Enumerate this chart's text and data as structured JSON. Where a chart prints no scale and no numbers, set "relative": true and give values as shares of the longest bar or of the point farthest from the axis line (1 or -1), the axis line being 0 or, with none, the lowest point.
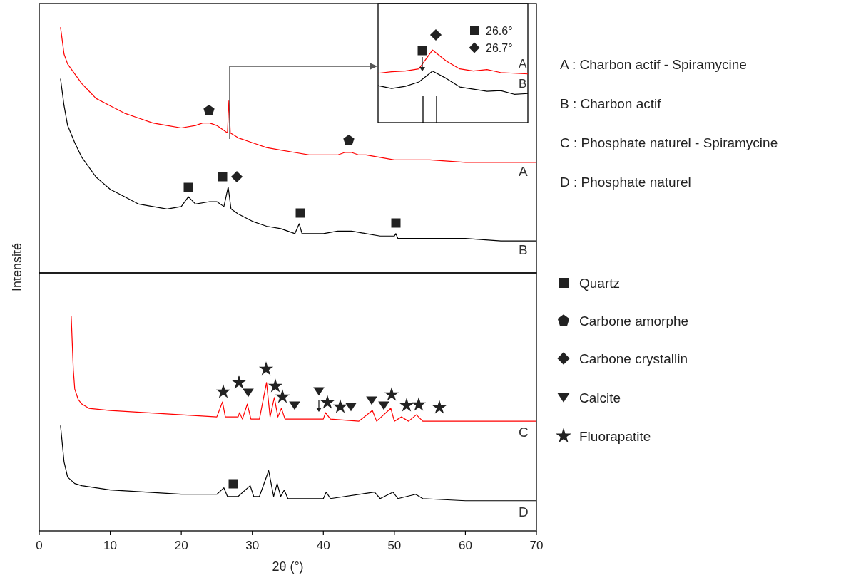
{
  "chart_data": [
    {
      "type": "line",
      "relative": true,
      "ylabel": "Intensité",
      "xlim": [
        0,
        70
      ],
      "tick_labels": false,
      "annotations": [
        "A : Charbon actif - Spiramycine",
        "B : Charbon actif",
        "C : Phosphate naturel - Spiramycine",
        "D : Phosphate naturel"
      ],
      "series": [
        {
          "name": "A",
          "color": "#ff0000",
          "x": [
            3,
            3.5,
            4,
            5,
            6,
            7,
            8,
            10,
            12,
            14,
            16,
            18,
            20,
            22,
            23,
            24,
            25,
            26,
            26.5,
            26.7,
            26.9,
            28,
            30,
            32,
            34,
            36,
            38,
            40,
            42,
            43,
            44,
            45,
            46,
            48,
            50,
            55,
            60,
            65,
            70
          ],
          "values": [
            1,
            0.89,
            0.85,
            0.81,
            0.77,
            0.74,
            0.71,
            0.68,
            0.65,
            0.63,
            0.61,
            0.6,
            0.59,
            0.6,
            0.61,
            0.61,
            0.6,
            0.58,
            0.57,
            0.7,
            0.57,
            0.55,
            0.53,
            0.51,
            0.5,
            0.49,
            0.48,
            0.48,
            0.48,
            0.49,
            0.49,
            0.48,
            0.48,
            0.47,
            0.46,
            0.46,
            0.45,
            0.45,
            0.45
          ]
        },
        {
          "name": "B",
          "color": "#000000",
          "x": [
            3,
            3.5,
            4,
            5,
            6,
            7,
            8,
            10,
            12,
            14,
            16,
            18,
            20,
            21,
            22,
            24,
            25,
            26,
            26.6,
            27,
            28,
            30,
            32,
            34,
            36,
            36.6,
            37,
            40,
            42,
            44,
            46,
            48,
            50,
            50.2,
            50.5,
            55,
            60,
            65,
            70
          ],
          "values": [
            0.79,
            0.68,
            0.6,
            0.53,
            0.47,
            0.43,
            0.39,
            0.34,
            0.31,
            0.28,
            0.27,
            0.26,
            0.27,
            0.31,
            0.28,
            0.29,
            0.29,
            0.27,
            0.35,
            0.26,
            0.24,
            0.21,
            0.19,
            0.18,
            0.16,
            0.2,
            0.16,
            0.16,
            0.17,
            0.17,
            0.16,
            0.15,
            0.15,
            0.16,
            0.14,
            0.14,
            0.14,
            0.13,
            0.13
          ]
        }
      ]
    },
    {
      "type": "line",
      "relative": true,
      "xlabel": "2θ (°)",
      "xlim": [
        0,
        70
      ],
      "xticks": [
        0,
        10,
        20,
        30,
        40,
        50,
        60,
        70
      ],
      "tick_labels": "x",
      "annotations": [
        "Quartz",
        "Carbone amorphe",
        "Carbone crystallin",
        "Calcite",
        "Fluorapatite"
      ],
      "series": [
        {
          "name": "C",
          "color": "#ff0000",
          "x": [
            4.5,
            4.8,
            5,
            5.5,
            6,
            7,
            10,
            15,
            20,
            25,
            25.8,
            26.2,
            28,
            28.2,
            28.6,
            29.3,
            29.8,
            31,
            32,
            32.5,
            33.1,
            33.6,
            34.1,
            34.6,
            36,
            40,
            40.3,
            41,
            45,
            46.9,
            47.5,
            49.5,
            50,
            51,
            52,
            53.1,
            54,
            60,
            70
          ],
          "values": [
            1,
            0.75,
            0.66,
            0.61,
            0.59,
            0.57,
            0.56,
            0.55,
            0.54,
            0.53,
            0.6,
            0.53,
            0.53,
            0.55,
            0.52,
            0.59,
            0.52,
            0.52,
            0.69,
            0.53,
            0.62,
            0.53,
            0.57,
            0.52,
            0.52,
            0.52,
            0.55,
            0.52,
            0.51,
            0.56,
            0.51,
            0.57,
            0.51,
            0.53,
            0.51,
            0.54,
            0.51,
            0.51,
            0.51
          ]
        },
        {
          "name": "D",
          "color": "#000000",
          "x": [
            3,
            3.5,
            4,
            5,
            6,
            8,
            10,
            15,
            20,
            25,
            26,
            26.5,
            27,
            28,
            29.7,
            30.2,
            31,
            32.3,
            33,
            33.5,
            34,
            34.5,
            35,
            40,
            40.4,
            41,
            47.2,
            48,
            49.8,
            50.5,
            53,
            54,
            60,
            70
          ],
          "values": [
            0.49,
            0.32,
            0.25,
            0.22,
            0.21,
            0.2,
            0.19,
            0.18,
            0.17,
            0.17,
            0.2,
            0.16,
            0.16,
            0.16,
            0.21,
            0.16,
            0.16,
            0.28,
            0.16,
            0.22,
            0.16,
            0.19,
            0.15,
            0.15,
            0.18,
            0.15,
            0.18,
            0.15,
            0.18,
            0.15,
            0.17,
            0.15,
            0.14,
            0.14
          ]
        }
      ]
    },
    {
      "type": "line",
      "relative": true,
      "categories": [
        null,
        null,
        null,
        null,
        null,
        null,
        null,
        null,
        null,
        null,
        null,
        null
      ],
      "tick_labels": false,
      "annotations": [
        "26.6°",
        "26.7°"
      ],
      "series": [
        {
          "name": "A",
          "color": "#ff0000",
          "values": [
            0.68,
            0.7,
            0.71,
            0.74,
            1,
            0.85,
            0.74,
            0.71,
            0.73,
            0.69,
            0.68,
            0.67
          ]
        },
        {
          "name": "B",
          "color": "#000000",
          "values": [
            0.51,
            0.47,
            0.5,
            0.56,
            0.71,
            0.61,
            0.49,
            0.46,
            0.43,
            0.44,
            0.39,
            0.4
          ]
        }
      ]
    }
  ]
}
